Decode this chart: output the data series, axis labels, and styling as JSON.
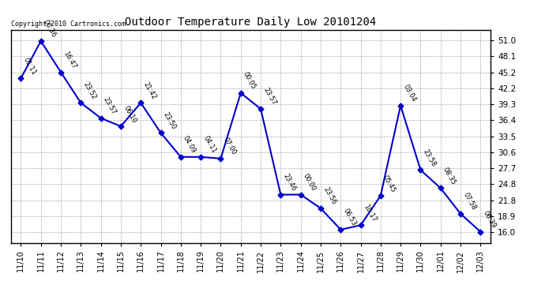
{
  "title": "Outdoor Temperature Daily Low 20101204",
  "copyright_text": "Copyright 2010 Cartronics.com",
  "line_color": "#0000cc",
  "marker_color": "#0000cc",
  "bg_color": "#ffffff",
  "grid_color": "#aaaaaa",
  "dates": [
    "11/10",
    "11/11",
    "11/12",
    "11/13",
    "11/14",
    "11/15",
    "11/16",
    "11/17",
    "11/18",
    "11/19",
    "11/20",
    "11/21",
    "11/22",
    "11/23",
    "11/24",
    "11/25",
    "11/26",
    "11/27",
    "11/28",
    "11/29",
    "11/30",
    "12/01",
    "12/02",
    "12/03"
  ],
  "temperatures": [
    44.1,
    50.9,
    45.2,
    39.6,
    36.8,
    35.3,
    39.6,
    34.1,
    29.7,
    29.7,
    29.4,
    41.4,
    38.5,
    22.8,
    22.8,
    20.3,
    16.4,
    17.2,
    22.6,
    39.1,
    27.3,
    24.0,
    19.3,
    16.0
  ],
  "time_labels": [
    "01:11",
    "06:36",
    "16:47",
    "23:52",
    "23:57",
    "06:10",
    "21:42",
    "23:50",
    "04:09",
    "04:11",
    "07:00",
    "00:05",
    "23:57",
    "23:46",
    "00:00",
    "23:56",
    "06:53",
    "10:17",
    "05:45",
    "03:04",
    "23:58",
    "08:35",
    "07:58",
    "06:39"
  ],
  "ylim": [
    14.0,
    53.0
  ],
  "yticks": [
    16.0,
    18.9,
    21.8,
    24.8,
    27.7,
    30.6,
    33.5,
    36.4,
    39.3,
    42.2,
    45.2,
    48.1,
    51.0
  ]
}
